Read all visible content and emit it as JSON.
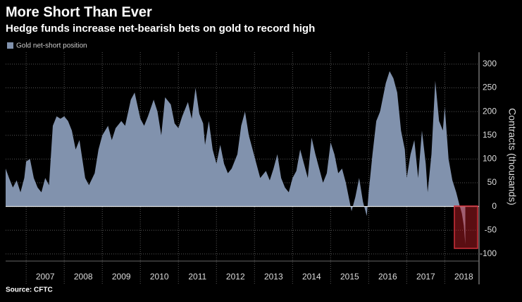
{
  "chart_data": {
    "type": "area",
    "title": "More Short Than Ever",
    "subtitle": "Hedge funds increase net-bearish bets on gold to record high",
    "y_label": "Contracts (thousands)",
    "source": "Source: CFTC",
    "grid": true,
    "series": [
      {
        "name": "Gold net-short position",
        "color": "#8192ad",
        "x": [
          2006.46,
          2006.55,
          2006.65,
          2006.75,
          2006.85,
          2006.95,
          2007.0,
          2007.1,
          2007.2,
          2007.3,
          2007.4,
          2007.5,
          2007.6,
          2007.7,
          2007.8,
          2007.9,
          2008.0,
          2008.1,
          2008.2,
          2008.3,
          2008.4,
          2008.55,
          2008.65,
          2008.8,
          2008.9,
          2009.0,
          2009.15,
          2009.25,
          2009.35,
          2009.5,
          2009.6,
          2009.75,
          2009.85,
          2010.0,
          2010.1,
          2010.2,
          2010.35,
          2010.45,
          2010.55,
          2010.65,
          2010.8,
          2010.9,
          2011.0,
          2011.1,
          2011.25,
          2011.35,
          2011.45,
          2011.55,
          2011.65,
          2011.7,
          2011.8,
          2011.9,
          2012.0,
          2012.1,
          2012.2,
          2012.3,
          2012.4,
          2012.55,
          2012.65,
          2012.75,
          2012.85,
          2012.95,
          2013.05,
          2013.15,
          2013.3,
          2013.4,
          2013.5,
          2013.6,
          2013.7,
          2013.8,
          2013.9,
          2014.0,
          2014.1,
          2014.2,
          2014.3,
          2014.4,
          2014.5,
          2014.6,
          2014.7,
          2014.8,
          2014.9,
          2015.0,
          2015.1,
          2015.2,
          2015.3,
          2015.4,
          2015.5,
          2015.55,
          2015.65,
          2015.75,
          2015.85,
          2015.95,
          2016.0,
          2016.1,
          2016.2,
          2016.3,
          2016.45,
          2016.55,
          2016.65,
          2016.75,
          2016.85,
          2016.95,
          2017.0,
          2017.1,
          2017.2,
          2017.3,
          2017.4,
          2017.5,
          2017.55,
          2017.65,
          2017.75,
          2017.85,
          2017.95,
          2018.0,
          2018.1,
          2018.2,
          2018.3,
          2018.38,
          2018.45,
          2018.5,
          2018.54
        ],
        "values": [
          80,
          60,
          40,
          55,
          30,
          60,
          95,
          100,
          60,
          40,
          30,
          60,
          45,
          170,
          190,
          185,
          190,
          180,
          160,
          120,
          140,
          60,
          45,
          70,
          120,
          150,
          170,
          140,
          165,
          180,
          170,
          225,
          240,
          185,
          170,
          190,
          225,
          200,
          150,
          230,
          215,
          175,
          165,
          190,
          220,
          185,
          250,
          195,
          175,
          130,
          180,
          120,
          90,
          130,
          90,
          70,
          80,
          110,
          170,
          200,
          150,
          120,
          90,
          60,
          75,
          55,
          80,
          110,
          60,
          40,
          30,
          60,
          75,
          120,
          90,
          60,
          145,
          110,
          80,
          50,
          70,
          135,
          110,
          70,
          80,
          50,
          10,
          -10,
          20,
          60,
          10,
          -20,
          30,
          110,
          180,
          200,
          260,
          285,
          270,
          240,
          160,
          120,
          60,
          110,
          140,
          60,
          160,
          90,
          30,
          110,
          265,
          180,
          160,
          210,
          100,
          55,
          30,
          5,
          -15,
          -40,
          -80
        ]
      }
    ],
    "xlim": [
      2006.46,
      2018.9
    ],
    "xticks": [
      2007,
      2008,
      2009,
      2010,
      2011,
      2012,
      2013,
      2014,
      2015,
      2016,
      2017,
      2018
    ],
    "ylim": [
      -112,
      325
    ],
    "yticks": [
      -100,
      -50,
      0,
      50,
      100,
      150,
      200,
      250,
      300
    ]
  }
}
